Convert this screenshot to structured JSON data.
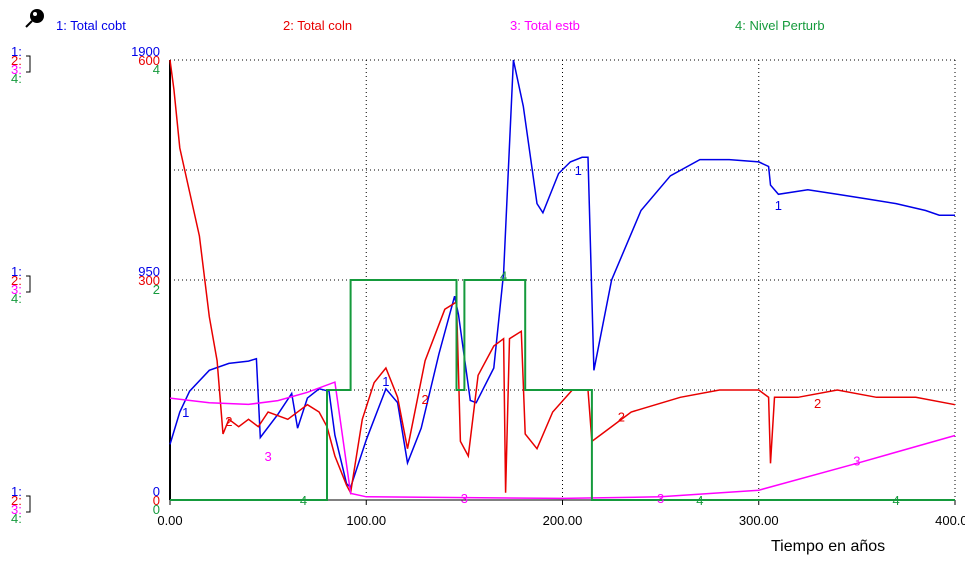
{
  "chart_data": {
    "type": "line",
    "title": "",
    "xlabel": "Tiempo en años",
    "xlim": [
      0,
      400
    ],
    "x_ticks": [
      0,
      100,
      200,
      300,
      400
    ],
    "x_tick_labels": [
      "0.00",
      "100.00",
      "200.00",
      "300.00",
      "400.00"
    ],
    "grid": true,
    "series": [
      {
        "index": "1",
        "name": "Total cobt",
        "color": "#0000e8",
        "ylim": [
          0,
          1900
        ],
        "tick_labels": [
          "1900",
          "950",
          "0"
        ],
        "points": [
          [
            0,
            240
          ],
          [
            5,
            380
          ],
          [
            10,
            470
          ],
          [
            20,
            560
          ],
          [
            30,
            590
          ],
          [
            40,
            600
          ],
          [
            44,
            610
          ],
          [
            46,
            270
          ],
          [
            55,
            370
          ],
          [
            62,
            460
          ],
          [
            65,
            310
          ],
          [
            70,
            440
          ],
          [
            76,
            480
          ],
          [
            81,
            470
          ],
          [
            84,
            280
          ],
          [
            90,
            70
          ],
          [
            92,
            55
          ],
          [
            100,
            260
          ],
          [
            110,
            480
          ],
          [
            116,
            420
          ],
          [
            121,
            160
          ],
          [
            128,
            310
          ],
          [
            137,
            630
          ],
          [
            145,
            880
          ],
          [
            147,
            800
          ],
          [
            153,
            430
          ],
          [
            156,
            420
          ],
          [
            165,
            570
          ],
          [
            170,
            980
          ],
          [
            175,
            1900
          ],
          [
            180,
            1700
          ],
          [
            187,
            1280
          ],
          [
            190,
            1240
          ],
          [
            198,
            1410
          ],
          [
            204,
            1460
          ],
          [
            210,
            1480
          ],
          [
            213,
            1480
          ],
          [
            216,
            560
          ],
          [
            225,
            950
          ],
          [
            240,
            1250
          ],
          [
            255,
            1400
          ],
          [
            270,
            1470
          ],
          [
            285,
            1470
          ],
          [
            300,
            1460
          ],
          [
            305,
            1440
          ],
          [
            306,
            1360
          ],
          [
            310,
            1320
          ],
          [
            325,
            1340
          ],
          [
            340,
            1320
          ],
          [
            355,
            1300
          ],
          [
            370,
            1280
          ],
          [
            385,
            1250
          ],
          [
            392,
            1230
          ],
          [
            400,
            1230
          ]
        ]
      },
      {
        "index": "2",
        "name": "Total coln",
        "color": "#e80000",
        "ylim": [
          0,
          600
        ],
        "tick_labels": [
          "600",
          "300",
          "0"
        ],
        "points": [
          [
            0,
            600
          ],
          [
            2,
            560
          ],
          [
            5,
            480
          ],
          [
            10,
            420
          ],
          [
            15,
            360
          ],
          [
            20,
            250
          ],
          [
            24,
            190
          ],
          [
            27,
            90
          ],
          [
            30,
            110
          ],
          [
            35,
            100
          ],
          [
            40,
            110
          ],
          [
            45,
            100
          ],
          [
            50,
            120
          ],
          [
            60,
            110
          ],
          [
            70,
            130
          ],
          [
            76,
            120
          ],
          [
            80,
            100
          ],
          [
            84,
            60
          ],
          [
            90,
            20
          ],
          [
            92,
            10
          ],
          [
            98,
            110
          ],
          [
            104,
            160
          ],
          [
            110,
            180
          ],
          [
            116,
            140
          ],
          [
            121,
            70
          ],
          [
            130,
            190
          ],
          [
            140,
            260
          ],
          [
            146,
            270
          ],
          [
            148,
            80
          ],
          [
            152,
            60
          ],
          [
            157,
            170
          ],
          [
            165,
            210
          ],
          [
            170,
            220
          ],
          [
            171,
            10
          ],
          [
            173,
            220
          ],
          [
            179,
            230
          ],
          [
            181,
            90
          ],
          [
            187,
            70
          ],
          [
            195,
            120
          ],
          [
            205,
            150
          ],
          [
            213,
            150
          ],
          [
            215,
            80
          ],
          [
            220,
            90
          ],
          [
            235,
            120
          ],
          [
            260,
            140
          ],
          [
            280,
            150
          ],
          [
            300,
            150
          ],
          [
            305,
            140
          ],
          [
            306,
            50
          ],
          [
            308,
            140
          ],
          [
            320,
            140
          ],
          [
            340,
            150
          ],
          [
            360,
            140
          ],
          [
            380,
            140
          ],
          [
            400,
            130
          ]
        ]
      },
      {
        "index": "3",
        "name": "Total estb",
        "color": "#ff00ff",
        "ylim": [
          0,
          0.3
        ],
        "tick_labels": [
          "0",
          "0",
          "0"
        ],
        "points": [
          [
            0,
            0.0695
          ],
          [
            20,
            0.0663
          ],
          [
            40,
            0.0652
          ],
          [
            55,
            0.0678
          ],
          [
            70,
            0.0734
          ],
          [
            84,
            0.0804
          ],
          [
            92,
            0.0045
          ],
          [
            100,
            0.0022
          ],
          [
            200,
            0.0011
          ],
          [
            250,
            0.0022
          ],
          [
            300,
            0.0067
          ],
          [
            350,
            0.025
          ],
          [
            400,
            0.044
          ]
        ]
      },
      {
        "index": "4",
        "name": "Nivel Perturb",
        "color": "#159a3c",
        "ylim": [
          0,
          4
        ],
        "tick_labels": [
          "4",
          "2",
          "0"
        ],
        "points": [
          [
            0,
            0
          ],
          [
            80,
            0
          ],
          [
            80,
            1
          ],
          [
            92,
            1
          ],
          [
            92,
            2
          ],
          [
            146,
            2
          ],
          [
            146,
            1
          ],
          [
            150,
            1
          ],
          [
            150,
            2
          ],
          [
            181,
            2
          ],
          [
            181,
            1
          ],
          [
            215,
            1
          ],
          [
            215,
            0
          ],
          [
            400,
            0
          ]
        ]
      }
    ],
    "curve_markers": [
      {
        "series": 1,
        "label": "1",
        "x": 8,
        "y": 0.2
      },
      {
        "series": 2,
        "label": "2",
        "x": 30,
        "y": 0.18
      },
      {
        "series": 3,
        "label": "3",
        "x": 50,
        "y": 0.1
      },
      {
        "series": 1,
        "label": "1",
        "x": 110,
        "y": 0.27
      },
      {
        "series": 2,
        "label": "2",
        "x": 130,
        "y": 0.23
      },
      {
        "series": 3,
        "label": "3",
        "x": 150,
        "y": 0.004
      },
      {
        "series": 4,
        "label": "4",
        "x": 68,
        "y": 0.0
      },
      {
        "series": 4,
        "label": "4",
        "x": 170,
        "y": 0.51
      },
      {
        "series": 1,
        "label": "1",
        "x": 208,
        "y": 0.75
      },
      {
        "series": 2,
        "label": "2",
        "x": 230,
        "y": 0.19
      },
      {
        "series": 3,
        "label": "3",
        "x": 250,
        "y": 0.005
      },
      {
        "series": 4,
        "label": "4",
        "x": 270,
        "y": 0.0
      },
      {
        "series": 1,
        "label": "1",
        "x": 310,
        "y": 0.67
      },
      {
        "series": 2,
        "label": "2",
        "x": 330,
        "y": 0.22
      },
      {
        "series": 3,
        "label": "3",
        "x": 350,
        "y": 0.09
      },
      {
        "series": 4,
        "label": "4",
        "x": 370,
        "y": 0.0
      }
    ]
  }
}
